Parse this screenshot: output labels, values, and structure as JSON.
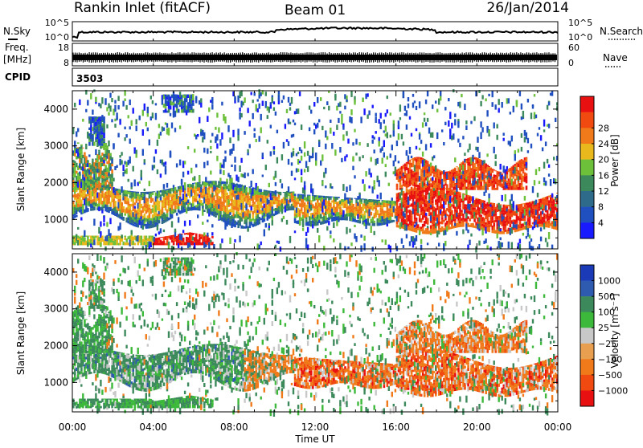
{
  "header": {
    "station": "Rankin Inlet (fitACF)",
    "beam": "Beam 01",
    "date": "26/Jan/2014"
  },
  "noise_panel": {
    "left_label": "N.Sky",
    "right_label": "N.Search",
    "ticks_left": [
      "10^5",
      "10^0"
    ],
    "ticks_right": [
      "10^5",
      "10^0"
    ]
  },
  "freq_panel": {
    "left_label_1": "Freq.",
    "left_label_2": "[MHz]",
    "right_label": "Nave",
    "ticks_left": [
      "18",
      "8"
    ],
    "ticks_right": [
      "60",
      "0"
    ]
  },
  "cpid_panel": {
    "label": "CPID",
    "value": "3503"
  },
  "colors": {
    "power_scale": [
      "#1a1aff",
      "#2050c0",
      "#2e6a8a",
      "#3c8a5c",
      "#6cc03a",
      "#e8b81c",
      "#f07a1a",
      "#f04a10",
      "#e81010"
    ],
    "velocity_scale": [
      "#e81010",
      "#f04a10",
      "#f07a1a",
      "#e8a050",
      "#c8c8c8",
      "#3cb83a",
      "#3c8a5c",
      "#2e5ab0",
      "#1a3ab8"
    ]
  },
  "chart_data": [
    {
      "type": "heatmap",
      "name": "power",
      "xlabel": "Time UT",
      "ylabel": "Slant Range [km]",
      "x_ticks": [
        "00:00",
        "04:00",
        "08:00",
        "12:00",
        "16:00",
        "20:00",
        "00:00"
      ],
      "y_ticks": [
        1000,
        2000,
        3000,
        4000
      ],
      "ylim": [
        200,
        4500
      ],
      "xlim_hours": [
        0,
        24
      ],
      "colorbar_label": "Power [dB]",
      "colorbar_ticks": [
        "4",
        "8",
        "12",
        "16",
        "20",
        "24",
        "28"
      ]
    },
    {
      "type": "heatmap",
      "name": "velocity",
      "xlabel": "Time UT",
      "ylabel": "Slant Range [km]",
      "x_ticks": [
        "00:00",
        "04:00",
        "08:00",
        "12:00",
        "16:00",
        "20:00",
        "00:00"
      ],
      "y_ticks": [
        1000,
        2000,
        3000,
        4000
      ],
      "ylim": [
        200,
        4500
      ],
      "xlim_hours": [
        0,
        24
      ],
      "colorbar_label": "Velocity [m s⁻¹]",
      "colorbar_ticks": [
        "1000",
        "500",
        "100",
        "25",
        "−25",
        "−100",
        "−500",
        "−1000"
      ]
    }
  ]
}
